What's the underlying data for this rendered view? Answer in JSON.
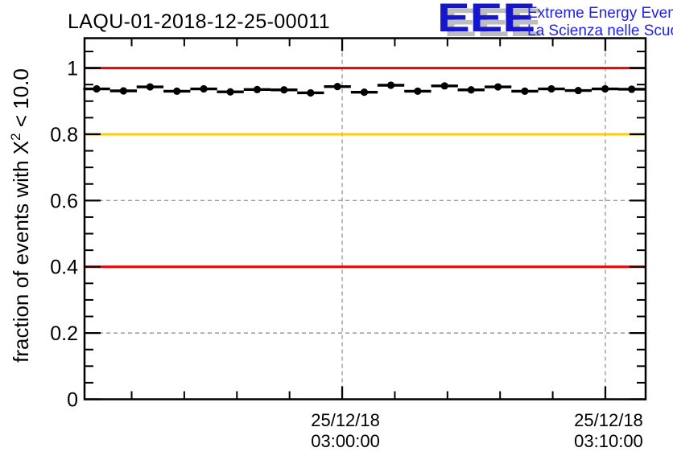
{
  "header": {
    "title": "LAQU-01-2018-12-25-00011",
    "logo": {
      "acronym": "EEE",
      "tagline_line1": "Extreme Energy Events",
      "tagline_line2": "La Scienza nelle Scuole",
      "acronym_color": "#1616cf",
      "tagline_color": "#2222ee",
      "shadow_color": "#bdbdbd"
    }
  },
  "chart_data": {
    "type": "scatter",
    "title": "LAQU-01-2018-12-25-00011",
    "ylabel": "fraction of events with X^2 < 10.0",
    "ylabel_parts": {
      "prefix": "fraction of events with X",
      "sup": "2",
      "suffix": " < 10.0"
    },
    "x_axis": {
      "kind": "time",
      "min": -9.79,
      "max": 11.53,
      "unit_note": "minutes relative to 25/12/18 03:00:00",
      "major_ticks": [
        {
          "t": 0,
          "label_line1": "25/12/18",
          "label_line2": "03:00:00"
        },
        {
          "t": 10,
          "label_line1": "25/12/18",
          "label_line2": "03:10:00"
        }
      ],
      "minor_ticks": [
        -8,
        -6,
        -4,
        -2,
        2,
        4,
        6,
        8
      ]
    },
    "y_axis": {
      "min": 0,
      "max": 1.09,
      "major_ticks": [
        0,
        0.2,
        0.4,
        0.6,
        0.8,
        1
      ],
      "major_labels": [
        "0",
        "0.2",
        "0.4",
        "0.6",
        "0.8",
        "1"
      ],
      "minor_step": 0.05
    },
    "grid": {
      "color": "#9c9c9c",
      "dash": "5 4",
      "x_values": [
        0,
        10
      ],
      "y_values": [
        0.2,
        0.4,
        0.6,
        0.8,
        1
      ]
    },
    "reference_lines": [
      {
        "y": 1.0,
        "color": "#ee0000"
      },
      {
        "y": 0.8,
        "color": "#ffcc00"
      },
      {
        "y": 0.4,
        "color": "#ee0000"
      }
    ],
    "series": [
      {
        "marker": "filled-circle",
        "color": "#000000",
        "bin_halfwidth": 0.51,
        "points": [
          {
            "t": -9.33,
            "v": 0.937
          },
          {
            "t": -8.31,
            "v": 0.931
          },
          {
            "t": -7.3,
            "v": 0.943
          },
          {
            "t": -6.28,
            "v": 0.93
          },
          {
            "t": -5.26,
            "v": 0.937
          },
          {
            "t": -4.25,
            "v": 0.928
          },
          {
            "t": -3.23,
            "v": 0.935
          },
          {
            "t": -2.21,
            "v": 0.934
          },
          {
            "t": -1.2,
            "v": 0.925
          },
          {
            "t": -0.18,
            "v": 0.944
          },
          {
            "t": 0.84,
            "v": 0.927
          },
          {
            "t": 1.85,
            "v": 0.948
          },
          {
            "t": 2.87,
            "v": 0.93
          },
          {
            "t": 3.89,
            "v": 0.946
          },
          {
            "t": 4.9,
            "v": 0.934
          },
          {
            "t": 5.92,
            "v": 0.943
          },
          {
            "t": 6.94,
            "v": 0.93
          },
          {
            "t": 7.95,
            "v": 0.937
          },
          {
            "t": 8.97,
            "v": 0.932
          },
          {
            "t": 9.99,
            "v": 0.937
          },
          {
            "t": 11.0,
            "v": 0.936
          }
        ]
      }
    ]
  }
}
